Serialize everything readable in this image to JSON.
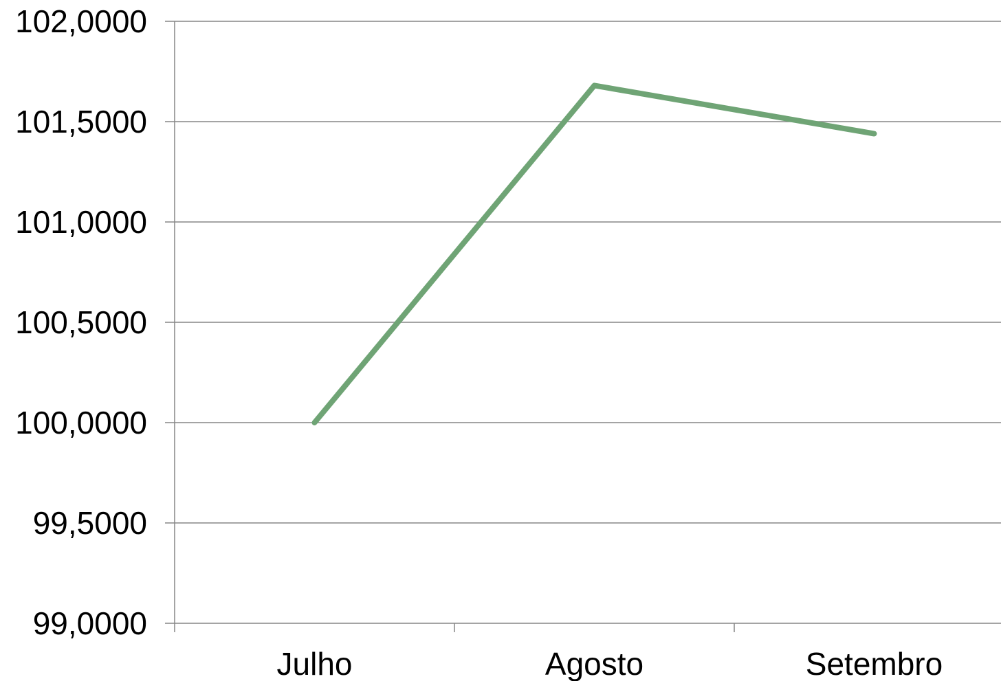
{
  "colors": {
    "background": "#ffffff",
    "gridline": "#868686",
    "axis": "#868686",
    "series": "#6fa475",
    "text": "#000000"
  },
  "chart_data": {
    "type": "line",
    "title": "",
    "xlabel": "",
    "ylabel": "",
    "categories": [
      "Julho",
      "Agosto",
      "Setembro"
    ],
    "series": [
      {
        "values": [
          100.0,
          101.68,
          101.44
        ]
      }
    ],
    "ylim": [
      99.0,
      102.0
    ],
    "ytick_values": [
      99.0,
      99.5,
      100.0,
      100.5,
      101.0,
      101.5,
      102.0
    ],
    "ytick_labels": [
      "99,0000",
      "99,5000",
      "100,0000",
      "100,5000",
      "101,0000",
      "101,5000",
      "102,0000"
    ],
    "grid": true,
    "legend": "none"
  }
}
